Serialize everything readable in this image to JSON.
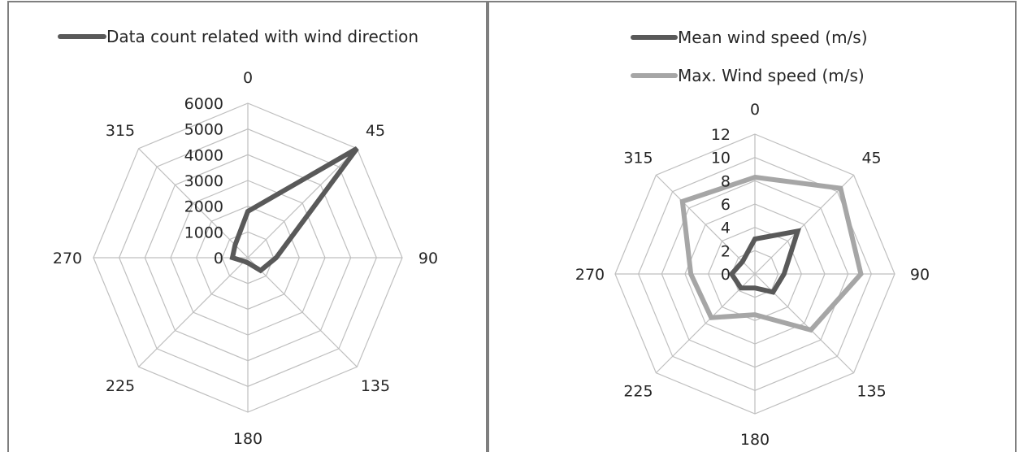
{
  "chart_data": [
    {
      "type": "radar",
      "title": "",
      "categories": [
        "0",
        "45",
        "90",
        "135",
        "180",
        "225",
        "270",
        "315"
      ],
      "rlim": [
        0,
        6000
      ],
      "ticks": [
        "0",
        "1000",
        "2000",
        "3000",
        "4000",
        "5000",
        "6000"
      ],
      "tick_values": [
        0,
        1000,
        2000,
        3000,
        4000,
        5000,
        6000
      ],
      "grid": true,
      "legend_position": "top",
      "series": [
        {
          "name": "Data count related with wind direction",
          "color": "#595959",
          "values": [
            1800,
            6000,
            1100,
            700,
            200,
            200,
            600,
            700
          ]
        }
      ]
    },
    {
      "type": "radar",
      "title": "",
      "categories": [
        "0",
        "45",
        "90",
        "135",
        "180",
        "225",
        "270",
        "315"
      ],
      "rlim": [
        0,
        12
      ],
      "ticks": [
        "0",
        "2",
        "4",
        "6",
        "8",
        "10",
        "12"
      ],
      "tick_values": [
        0,
        2,
        4,
        6,
        8,
        10,
        12
      ],
      "grid": true,
      "legend_position": "top",
      "series": [
        {
          "name": "Mean wind speed (m/s)",
          "color": "#595959",
          "values": [
            3,
            5.2,
            2.5,
            2.2,
            1.2,
            1.7,
            2,
            1.5
          ]
        },
        {
          "name": "Max. Wind speed (m/s)",
          "color": "#a6a6a6",
          "values": [
            8.3,
            10.4,
            9.1,
            6.8,
            3.5,
            5.3,
            5.5,
            8.8
          ]
        }
      ]
    }
  ]
}
